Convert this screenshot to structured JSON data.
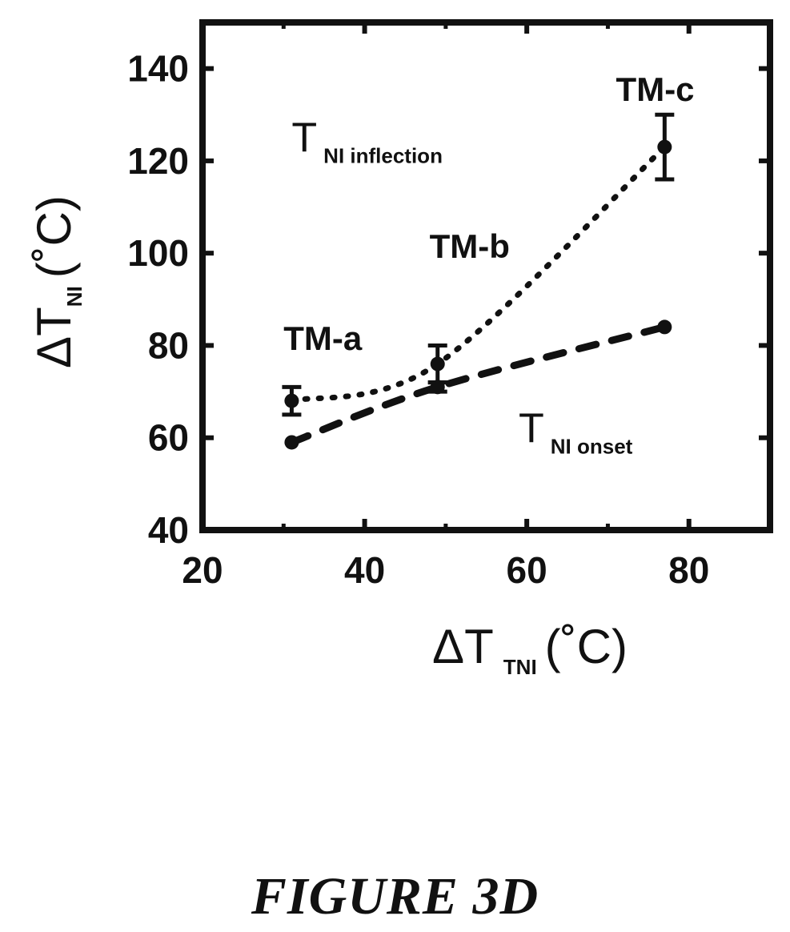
{
  "chart_data": {
    "type": "line",
    "xlabel": {
      "main": "ΔT",
      "sub": "TNI",
      "unit": "(˚C)"
    },
    "ylabel": {
      "main": "ΔT",
      "sub": "NI",
      "unit": "(˚C)"
    },
    "xlim": [
      20,
      90
    ],
    "ylim": [
      40,
      150
    ],
    "xticks": [
      20,
      40,
      60,
      80
    ],
    "yticks": [
      40,
      60,
      80,
      100,
      120,
      140
    ],
    "grid": false,
    "series": [
      {
        "name": "T NI inflection",
        "style": "dotted",
        "points": [
          {
            "x": 31,
            "y": 68,
            "err": 3
          },
          {
            "x": 49,
            "y": 76,
            "err": 4
          },
          {
            "x": 77,
            "y": 123,
            "err": 7
          }
        ]
      },
      {
        "name": "T NI onset",
        "style": "dashed",
        "points": [
          {
            "x": 31,
            "y": 59,
            "err": 0
          },
          {
            "x": 49,
            "y": 71,
            "err": 1
          },
          {
            "x": 77,
            "y": 84,
            "err": 0
          }
        ]
      }
    ],
    "annotations": [
      {
        "text": "TM-a",
        "x": 30,
        "y": 79
      },
      {
        "text": "TM-b",
        "x": 48,
        "y": 99
      },
      {
        "text": "TM-c",
        "x": 71,
        "y": 133
      }
    ],
    "regions": [
      {
        "main": "T",
        "sub": "NI inflection",
        "x": 31,
        "y": 122
      },
      {
        "main": "T",
        "sub": "NI onset",
        "x": 59,
        "y": 59
      }
    ]
  },
  "caption": "FIGURE 3D"
}
